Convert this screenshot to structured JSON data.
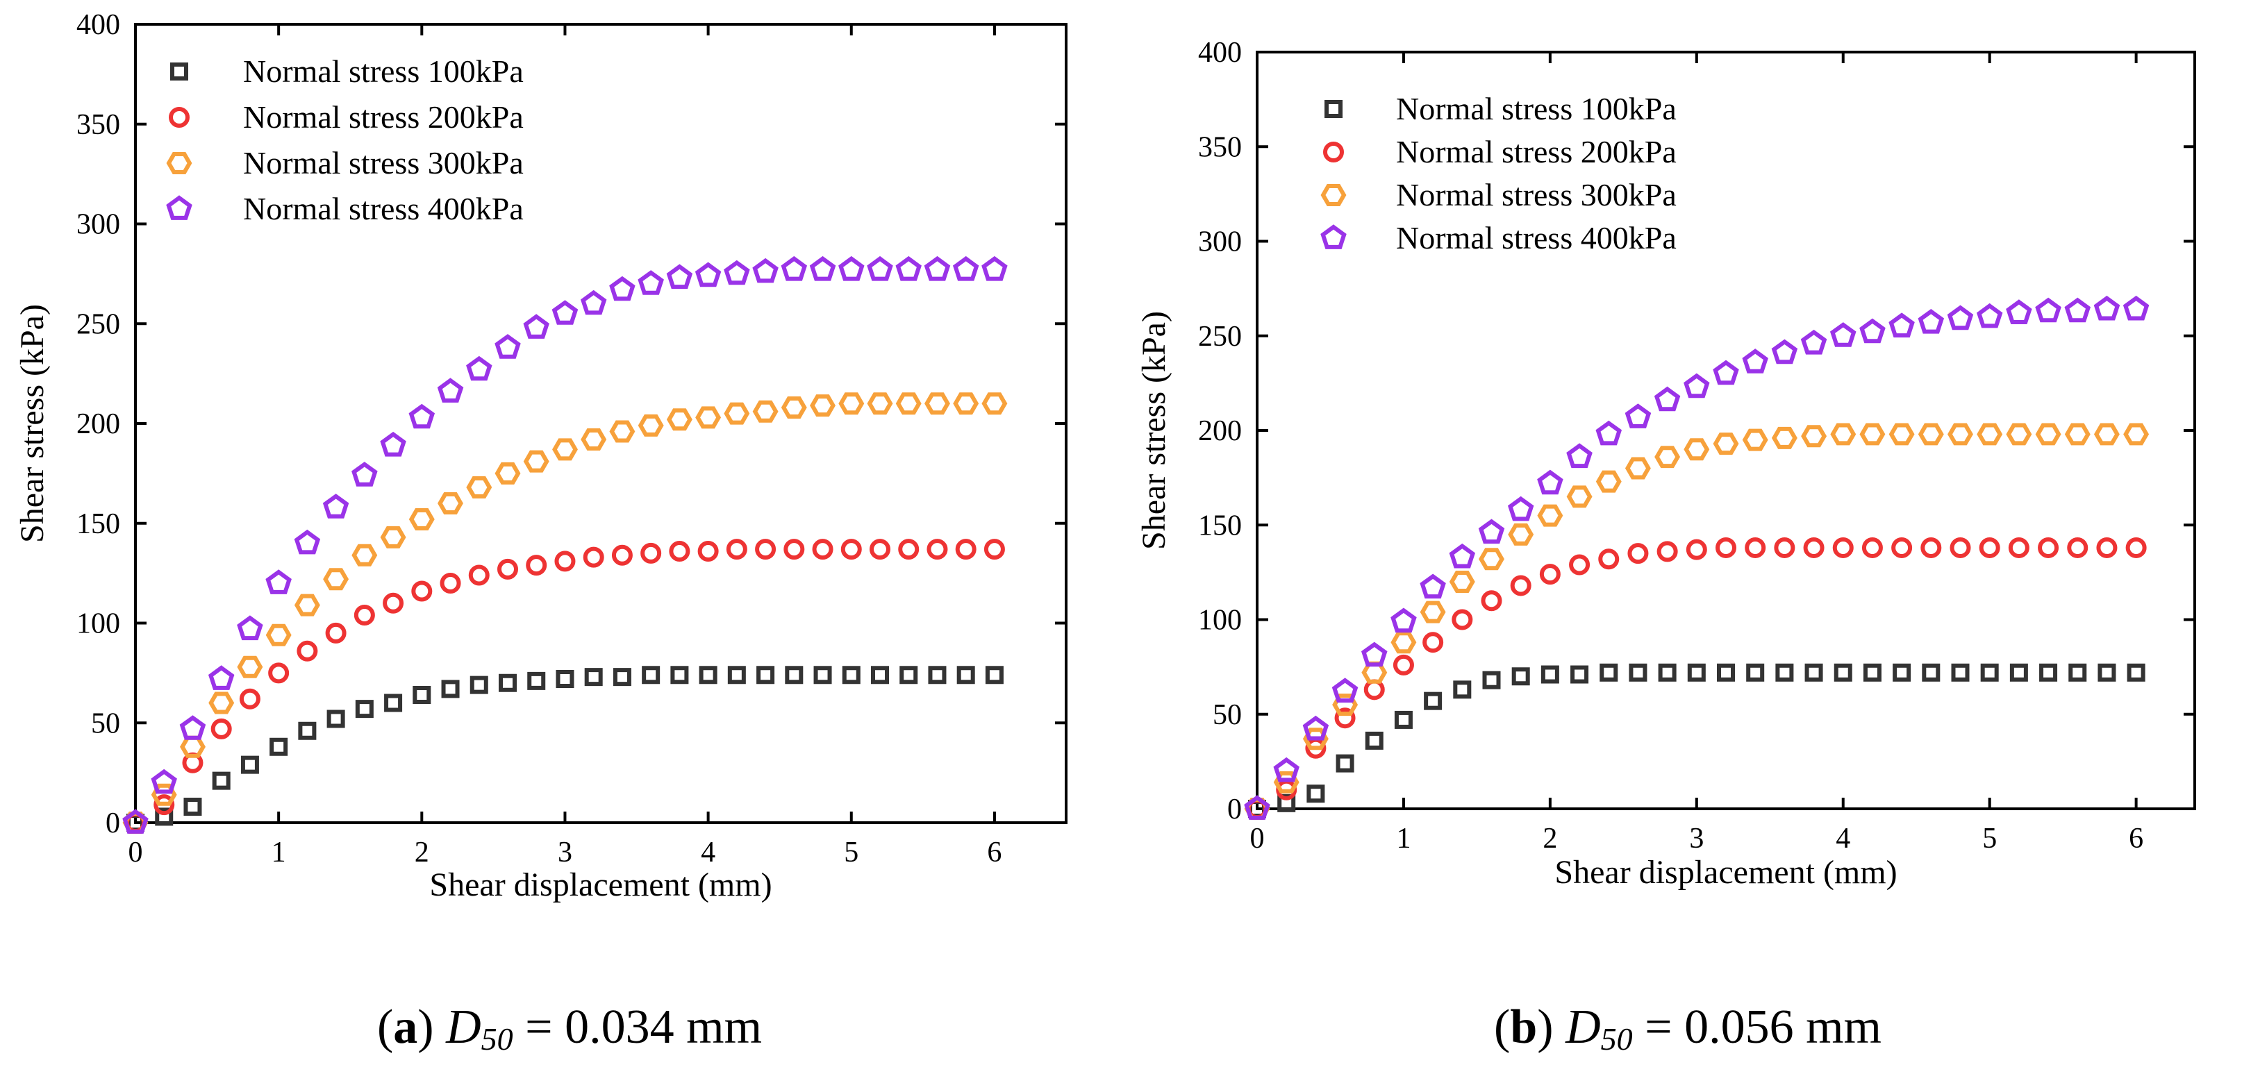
{
  "chart_data": [
    {
      "type": "scatter",
      "panel": "a",
      "caption": {
        "letter": "a",
        "symbol": "D",
        "subscript": "50",
        "value": " = 0.034 mm"
      },
      "xlabel": "Shear displacement (mm)",
      "ylabel": "Shear stress (kPa)",
      "xlim": [
        0,
        6.5
      ],
      "ylim": [
        0,
        400
      ],
      "xticks": [
        0,
        1,
        2,
        3,
        4,
        5,
        6
      ],
      "yticks": [
        0,
        50,
        100,
        150,
        200,
        250,
        300,
        350,
        400
      ],
      "legend_position": "top-left",
      "x": [
        0,
        0.2,
        0.4,
        0.6,
        0.8,
        1.0,
        1.2,
        1.4,
        1.6,
        1.8,
        2.0,
        2.2,
        2.4,
        2.6,
        2.8,
        3.0,
        3.2,
        3.4,
        3.6,
        3.8,
        4.0,
        4.2,
        4.4,
        4.6,
        4.8,
        5.0,
        5.2,
        5.4,
        5.6,
        5.8,
        6.0
      ],
      "series": [
        {
          "name": "Normal stress 100kPa",
          "marker": "square",
          "color": "#333333",
          "values": [
            0,
            3,
            8,
            21,
            29,
            38,
            46,
            52,
            57,
            60,
            64,
            67,
            69,
            70,
            71,
            72,
            73,
            73,
            74,
            74,
            74,
            74,
            74,
            74,
            74,
            74,
            74,
            74,
            74,
            74,
            74
          ]
        },
        {
          "name": "Normal stress 200kPa",
          "marker": "circle",
          "color": "#ee3333",
          "values": [
            0,
            9,
            30,
            47,
            62,
            75,
            86,
            95,
            104,
            110,
            116,
            120,
            124,
            127,
            129,
            131,
            133,
            134,
            135,
            136,
            136,
            137,
            137,
            137,
            137,
            137,
            137,
            137,
            137,
            137,
            137
          ]
        },
        {
          "name": "Normal stress 300kPa",
          "marker": "hexagon",
          "color": "#f7a13b",
          "values": [
            0,
            14,
            38,
            60,
            78,
            94,
            109,
            122,
            134,
            143,
            152,
            160,
            168,
            175,
            181,
            187,
            192,
            196,
            199,
            202,
            203,
            205,
            206,
            208,
            209,
            210,
            210,
            210,
            210,
            210,
            210
          ]
        },
        {
          "name": "Normal stress 400kPa",
          "marker": "pentagon",
          "color": "#9a33e8",
          "values": [
            0,
            20,
            47,
            72,
            97,
            120,
            140,
            158,
            174,
            189,
            203,
            216,
            227,
            238,
            248,
            255,
            260,
            267,
            270,
            273,
            274,
            275,
            276,
            277,
            277,
            277,
            277,
            277,
            277,
            277,
            277
          ]
        }
      ]
    },
    {
      "type": "scatter",
      "panel": "b",
      "caption": {
        "letter": "b",
        "symbol": "D",
        "subscript": "50",
        "value": " = 0.056 mm"
      },
      "xlabel": "Shear displacement (mm)",
      "ylabel": "Shear stress (kPa)",
      "xlim": [
        0,
        6.4
      ],
      "ylim": [
        0,
        400
      ],
      "xticks": [
        0,
        1,
        2,
        3,
        4,
        5,
        6
      ],
      "yticks": [
        0,
        50,
        100,
        150,
        200,
        250,
        300,
        350,
        400
      ],
      "legend_position": "top-left",
      "x": [
        0,
        0.2,
        0.4,
        0.6,
        0.8,
        1.0,
        1.2,
        1.4,
        1.6,
        1.8,
        2.0,
        2.2,
        2.4,
        2.6,
        2.8,
        3.0,
        3.2,
        3.4,
        3.6,
        3.8,
        4.0,
        4.2,
        4.4,
        4.6,
        4.8,
        5.0,
        5.2,
        5.4,
        5.6,
        5.8,
        6.0
      ],
      "series": [
        {
          "name": "Normal stress 100kPa",
          "marker": "square",
          "color": "#333333",
          "values": [
            0,
            3,
            8,
            24,
            36,
            47,
            57,
            63,
            68,
            70,
            71,
            71,
            72,
            72,
            72,
            72,
            72,
            72,
            72,
            72,
            72,
            72,
            72,
            72,
            72,
            72,
            72,
            72,
            72,
            72,
            72
          ]
        },
        {
          "name": "Normal stress 200kPa",
          "marker": "circle",
          "color": "#ee3333",
          "values": [
            0,
            10,
            32,
            48,
            63,
            76,
            88,
            100,
            110,
            118,
            124,
            129,
            132,
            135,
            136,
            137,
            138,
            138,
            138,
            138,
            138,
            138,
            138,
            138,
            138,
            138,
            138,
            138,
            138,
            138,
            138
          ]
        },
        {
          "name": "Normal stress 300kPa",
          "marker": "hexagon",
          "color": "#f7a13b",
          "values": [
            0,
            14,
            37,
            55,
            72,
            88,
            104,
            120,
            132,
            145,
            155,
            165,
            173,
            180,
            186,
            190,
            193,
            195,
            196,
            197,
            198,
            198,
            198,
            198,
            198,
            198,
            198,
            198,
            198,
            198,
            198
          ]
        },
        {
          "name": "Normal stress 400kPa",
          "marker": "pentagon",
          "color": "#9a33e8",
          "values": [
            0,
            20,
            42,
            62,
            81,
            99,
            117,
            133,
            146,
            158,
            172,
            186,
            198,
            207,
            216,
            223,
            230,
            236,
            241,
            246,
            250,
            252,
            255,
            257,
            259,
            260,
            262,
            263,
            263,
            264,
            264
          ]
        }
      ]
    }
  ]
}
